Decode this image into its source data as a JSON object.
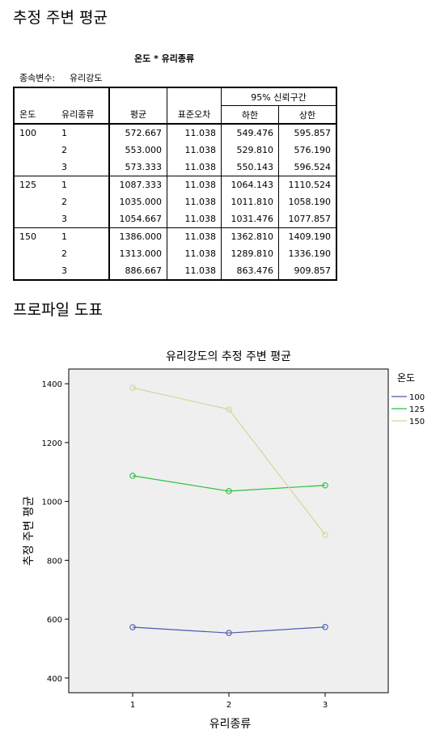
{
  "section1_title": "추정 주변 평균",
  "table": {
    "caption": "온도 * 유리종류",
    "dependent_label": "종속변수:",
    "dependent_value": "유리강도",
    "col_temp": "온도",
    "col_type": "유리종류",
    "col_mean": "평균",
    "col_se": "표준오차",
    "ci_header": "95% 신뢰구간",
    "col_lower": "하한",
    "col_upper": "상한",
    "rows": [
      {
        "temp": "100",
        "type": "1",
        "mean": "572.667",
        "se": "11.038",
        "lower": "549.476",
        "upper": "595.857"
      },
      {
        "temp": "",
        "type": "2",
        "mean": "553.000",
        "se": "11.038",
        "lower": "529.810",
        "upper": "576.190"
      },
      {
        "temp": "",
        "type": "3",
        "mean": "573.333",
        "se": "11.038",
        "lower": "550.143",
        "upper": "596.524"
      },
      {
        "temp": "125",
        "type": "1",
        "mean": "1087.333",
        "se": "11.038",
        "lower": "1064.143",
        "upper": "1110.524"
      },
      {
        "temp": "",
        "type": "2",
        "mean": "1035.000",
        "se": "11.038",
        "lower": "1011.810",
        "upper": "1058.190"
      },
      {
        "temp": "",
        "type": "3",
        "mean": "1054.667",
        "se": "11.038",
        "lower": "1031.476",
        "upper": "1077.857"
      },
      {
        "temp": "150",
        "type": "1",
        "mean": "1386.000",
        "se": "11.038",
        "lower": "1362.810",
        "upper": "1409.190"
      },
      {
        "temp": "",
        "type": "2",
        "mean": "1313.000",
        "se": "11.038",
        "lower": "1289.810",
        "upper": "1336.190"
      },
      {
        "temp": "",
        "type": "3",
        "mean": "886.667",
        "se": "11.038",
        "lower": "863.476",
        "upper": "909.857"
      }
    ]
  },
  "section2_title": "프로파일 도표",
  "chart_data": {
    "type": "line",
    "title": "유리강도의 추정 주변 평균",
    "xlabel": "유리종류",
    "ylabel": "추정 주변 평균",
    "categories": [
      "1",
      "2",
      "3"
    ],
    "yticks": [
      "400",
      "600",
      "800",
      "1000",
      "1200",
      "1400"
    ],
    "ylim": [
      350,
      1450
    ],
    "legend_title": "온도",
    "legend_position": "right",
    "grid": false,
    "background": "#efefef",
    "series": [
      {
        "name": "100",
        "color": "#4a5bb0",
        "values": [
          572.667,
          553.0,
          573.333
        ]
      },
      {
        "name": "125",
        "color": "#2bbf3c",
        "values": [
          1087.333,
          1035.0,
          1054.667
        ]
      },
      {
        "name": "150",
        "color": "#d8d49a",
        "values": [
          1386.0,
          1313.0,
          886.667
        ]
      }
    ]
  }
}
